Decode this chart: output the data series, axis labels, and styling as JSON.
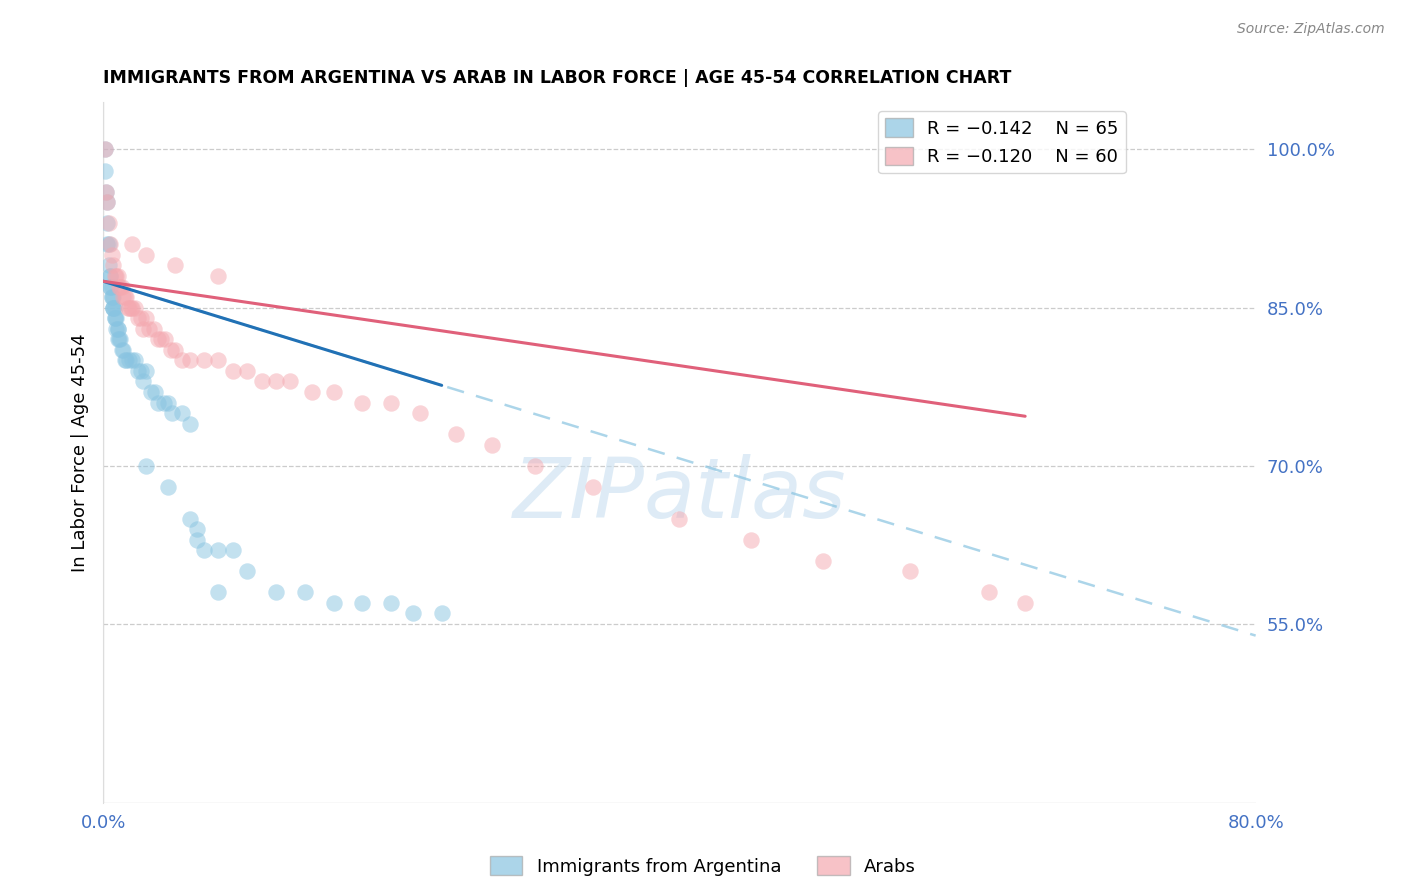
{
  "title": "IMMIGRANTS FROM ARGENTINA VS ARAB IN LABOR FORCE | AGE 45-54 CORRELATION CHART",
  "source": "Source: ZipAtlas.com",
  "ylabel_left": "In Labor Force | Age 45-54",
  "legend_r1": "R = −0.142",
  "legend_n1": "N = 65",
  "legend_r2": "R = −0.120",
  "legend_n2": "N = 60",
  "xlabel_legend1": "Immigrants from Argentina",
  "xlabel_legend2": "Arabs",
  "xlim": [
    0.0,
    0.8
  ],
  "ylim": [
    0.38,
    1.045
  ],
  "right_yticks": [
    1.0,
    0.85,
    0.7,
    0.55
  ],
  "right_yticklabels": [
    "100.0%",
    "85.0%",
    "70.0%",
    "55.0%"
  ],
  "color_argentina": "#89c4e1",
  "color_arab": "#f4a9b0",
  "color_argentina_line_solid": "#2171b5",
  "color_arab_line": "#e0607a",
  "color_argentina_dashed": "#89c4e1",
  "watermark_text": "ZIPatlas",
  "watermark_color": "#c8dff0",
  "arg_intercept": 0.875,
  "arg_slope": -0.42,
  "arab_intercept": 0.875,
  "arab_slope": -0.2,
  "arg_line_xmax": 0.235,
  "arab_line_xmax": 0.64,
  "argentina_scatter_x": [
    0.001,
    0.001,
    0.002,
    0.003,
    0.003,
    0.003,
    0.004,
    0.004,
    0.005,
    0.005,
    0.005,
    0.005,
    0.006,
    0.006,
    0.006,
    0.007,
    0.007,
    0.007,
    0.007,
    0.008,
    0.008,
    0.008,
    0.009,
    0.009,
    0.01,
    0.01,
    0.01,
    0.011,
    0.012,
    0.013,
    0.014,
    0.015,
    0.016,
    0.018,
    0.02,
    0.022,
    0.024,
    0.026,
    0.028,
    0.03,
    0.033,
    0.036,
    0.038,
    0.042,
    0.045,
    0.048,
    0.055,
    0.06,
    0.065,
    0.07,
    0.08,
    0.09,
    0.1,
    0.12,
    0.14,
    0.16,
    0.18,
    0.2,
    0.215,
    0.235,
    0.03,
    0.045,
    0.06,
    0.065,
    0.08
  ],
  "argentina_scatter_y": [
    1.0,
    0.98,
    0.96,
    0.95,
    0.93,
    0.91,
    0.91,
    0.89,
    0.88,
    0.88,
    0.87,
    0.87,
    0.87,
    0.86,
    0.86,
    0.86,
    0.85,
    0.85,
    0.85,
    0.85,
    0.84,
    0.84,
    0.84,
    0.83,
    0.83,
    0.83,
    0.82,
    0.82,
    0.82,
    0.81,
    0.81,
    0.8,
    0.8,
    0.8,
    0.8,
    0.8,
    0.79,
    0.79,
    0.78,
    0.79,
    0.77,
    0.77,
    0.76,
    0.76,
    0.76,
    0.75,
    0.75,
    0.74,
    0.63,
    0.62,
    0.62,
    0.62,
    0.6,
    0.58,
    0.58,
    0.57,
    0.57,
    0.57,
    0.56,
    0.56,
    0.7,
    0.68,
    0.65,
    0.64,
    0.58
  ],
  "arab_scatter_x": [
    0.001,
    0.002,
    0.003,
    0.004,
    0.005,
    0.006,
    0.007,
    0.008,
    0.009,
    0.01,
    0.011,
    0.012,
    0.013,
    0.014,
    0.015,
    0.016,
    0.017,
    0.018,
    0.019,
    0.02,
    0.022,
    0.024,
    0.026,
    0.028,
    0.03,
    0.032,
    0.035,
    0.038,
    0.04,
    0.043,
    0.047,
    0.05,
    0.055,
    0.06,
    0.07,
    0.08,
    0.09,
    0.1,
    0.11,
    0.12,
    0.13,
    0.145,
    0.16,
    0.18,
    0.2,
    0.22,
    0.245,
    0.27,
    0.3,
    0.34,
    0.4,
    0.45,
    0.5,
    0.56,
    0.615,
    0.64,
    0.02,
    0.03,
    0.05,
    0.08
  ],
  "arab_scatter_y": [
    1.0,
    0.96,
    0.95,
    0.93,
    0.91,
    0.9,
    0.89,
    0.88,
    0.88,
    0.88,
    0.87,
    0.87,
    0.87,
    0.86,
    0.86,
    0.86,
    0.85,
    0.85,
    0.85,
    0.85,
    0.85,
    0.84,
    0.84,
    0.83,
    0.84,
    0.83,
    0.83,
    0.82,
    0.82,
    0.82,
    0.81,
    0.81,
    0.8,
    0.8,
    0.8,
    0.8,
    0.79,
    0.79,
    0.78,
    0.78,
    0.78,
    0.77,
    0.77,
    0.76,
    0.76,
    0.75,
    0.73,
    0.72,
    0.7,
    0.68,
    0.65,
    0.63,
    0.61,
    0.6,
    0.58,
    0.57,
    0.91,
    0.9,
    0.89,
    0.88
  ]
}
